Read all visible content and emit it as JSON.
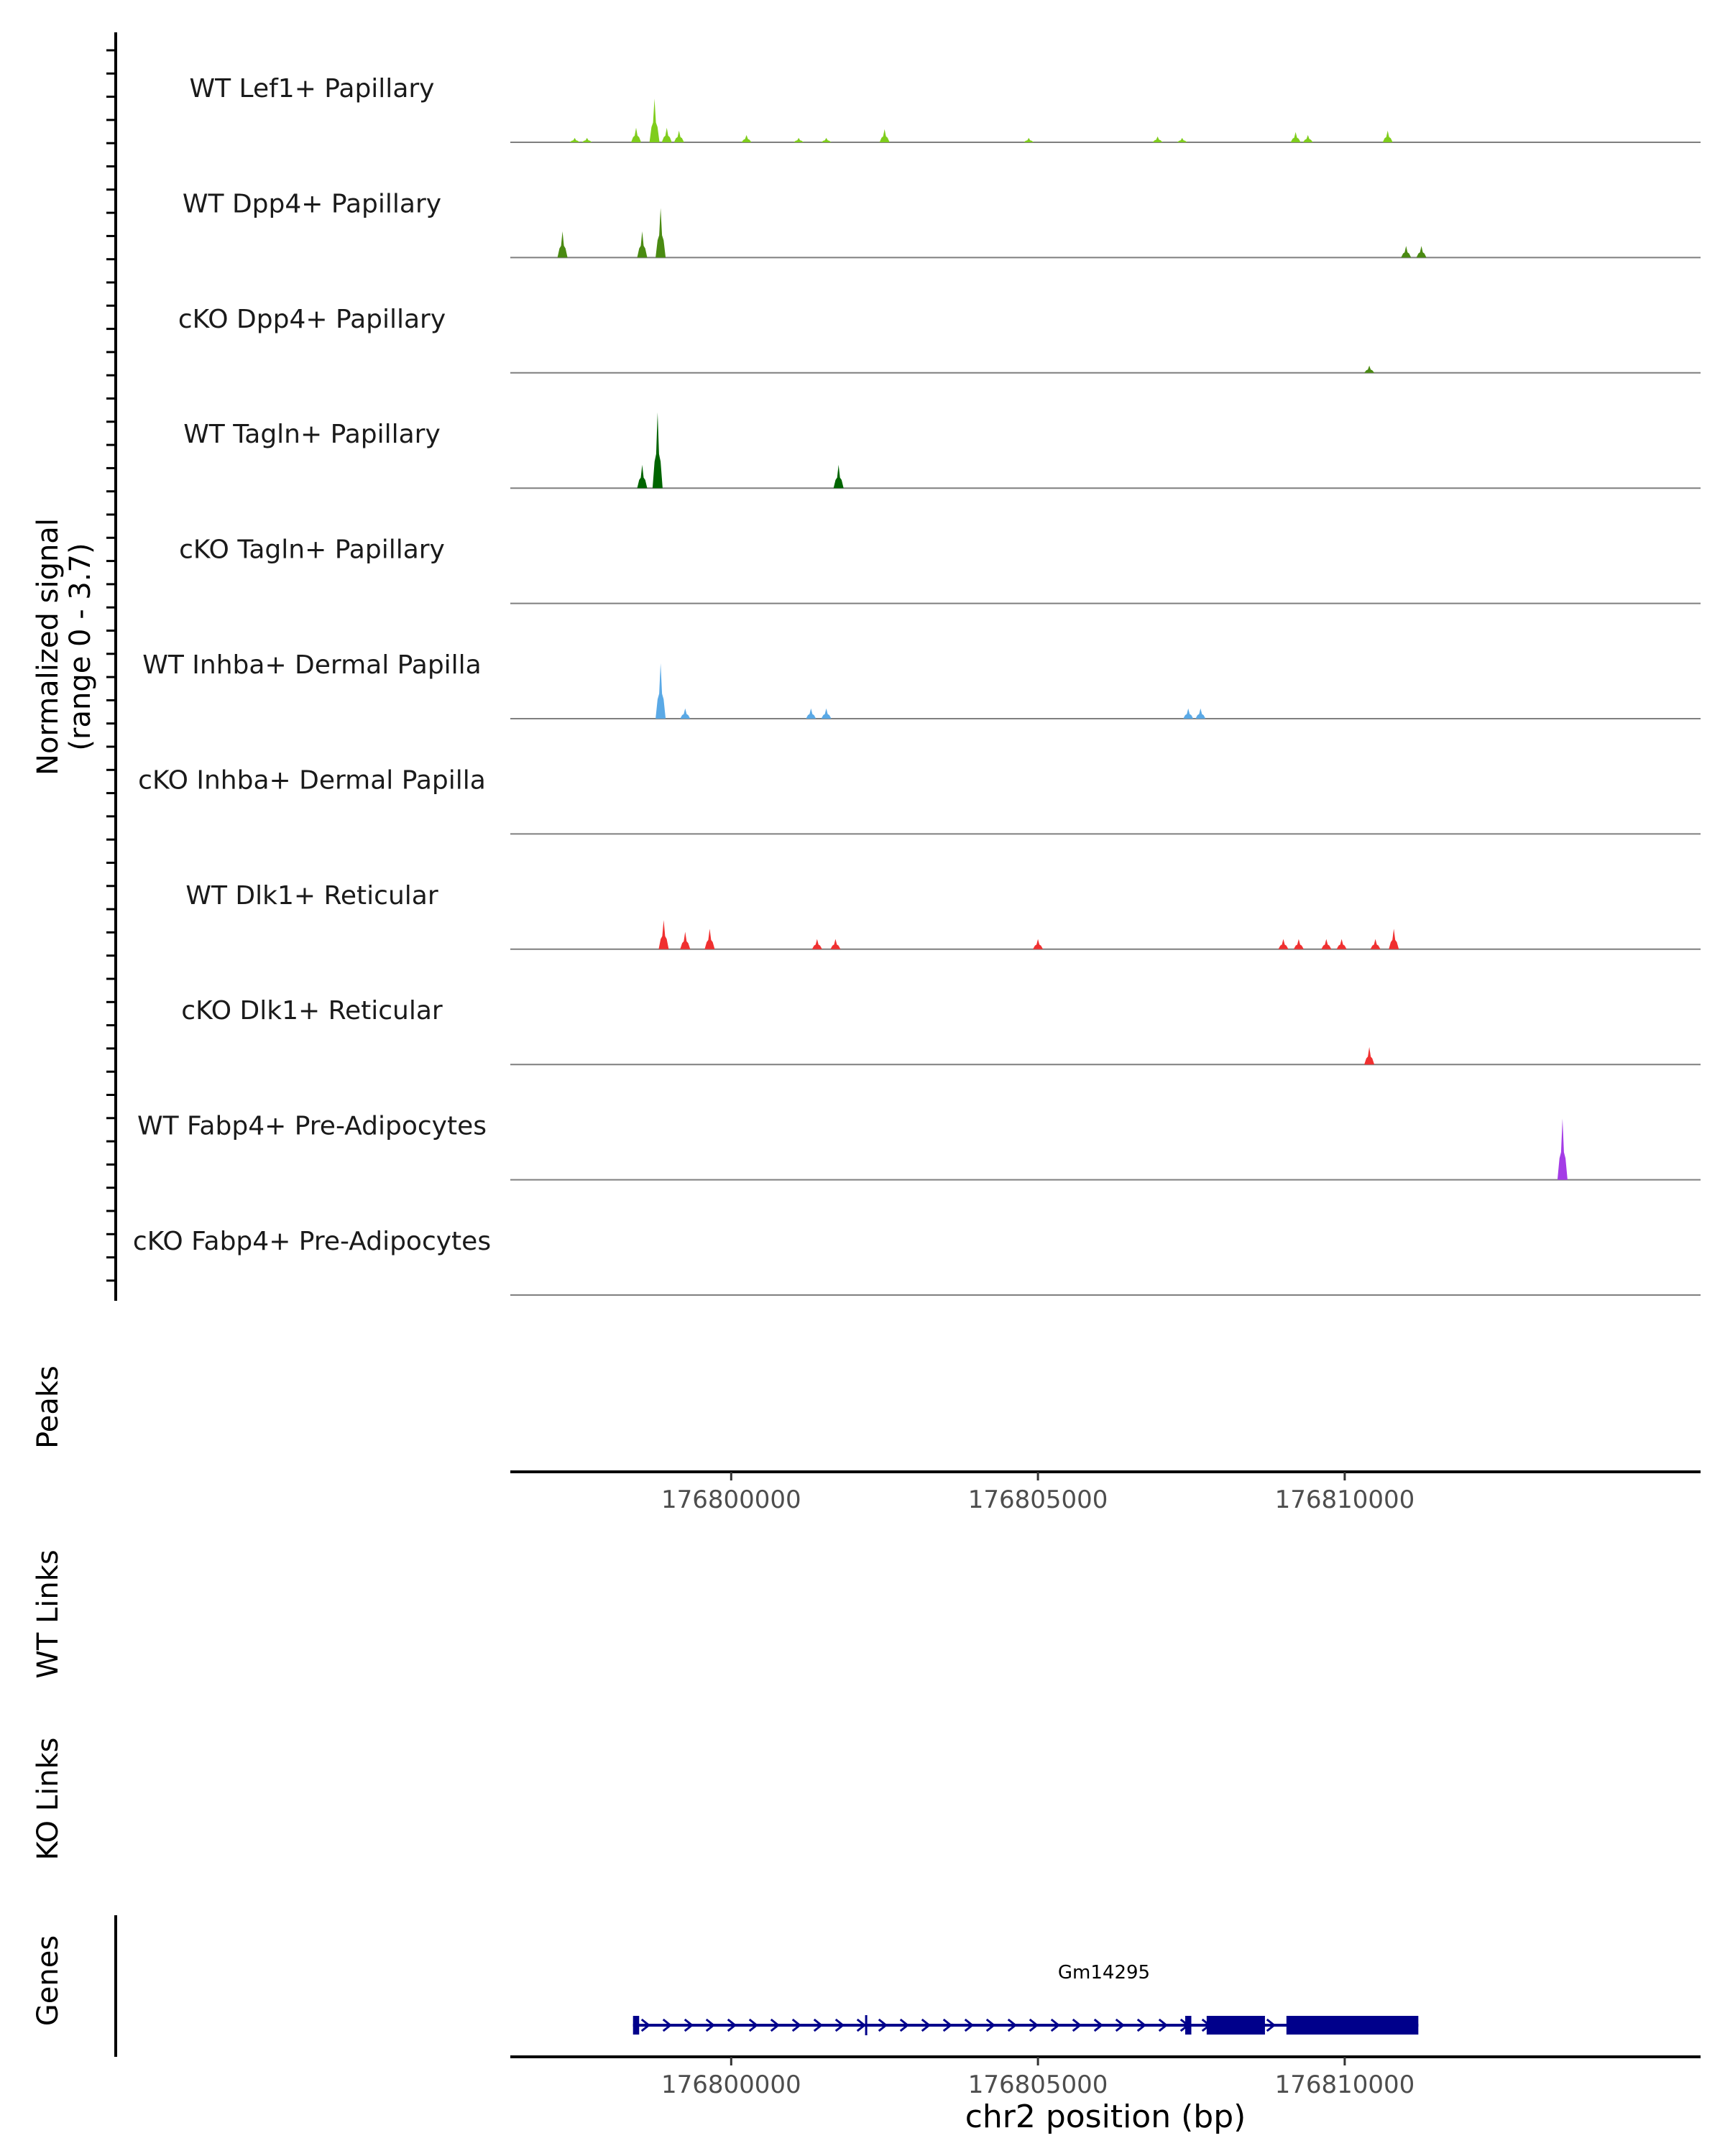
{
  "y_axis": {
    "label_line1": "Normalized signal",
    "label_line2": "(range 0 - 3.7)"
  },
  "panels": {
    "peaks": "Peaks",
    "wt_links": "WT Links",
    "ko_links": "KO Links",
    "genes": "Genes"
  },
  "x_axis": {
    "ticks": [
      {
        "value": 176800000,
        "label": "176800000"
      },
      {
        "value": 176805000,
        "label": "176805000"
      },
      {
        "value": 176810000,
        "label": "176810000"
      }
    ],
    "label": "chr2 position (bp)"
  },
  "gene": {
    "name": "Gm14295",
    "color": "#00008b"
  },
  "chart_data": {
    "type": "area",
    "title": "",
    "xlabel": "chr2 position (bp)",
    "ylabel": "Normalized signal (range 0 - 3.7)",
    "xlim": [
      176796400,
      176815800
    ],
    "ylim": [
      0,
      3.7
    ],
    "gene": {
      "name": "Gm14295",
      "start": 176798400,
      "end": 176811200,
      "strand": "+",
      "thick_blocks": [
        [
          176798400,
          176798500
        ],
        [
          176807400,
          176807500
        ],
        [
          176807750,
          176808700
        ],
        [
          176809050,
          176811200
        ]
      ],
      "intron_marks": [
        176802200
      ]
    },
    "tracks": [
      {
        "name": "WT Lef1+ Papillary",
        "color": "#7fcd1c",
        "peaks": [
          [
            176797450,
            0.15
          ],
          [
            176797650,
            0.15
          ],
          [
            176798450,
            0.5
          ],
          [
            176798750,
            1.5
          ],
          [
            176798950,
            0.5
          ],
          [
            176799150,
            0.4
          ],
          [
            176800250,
            0.25
          ],
          [
            176801100,
            0.15
          ],
          [
            176801550,
            0.15
          ],
          [
            176802500,
            0.45
          ],
          [
            176804850,
            0.15
          ],
          [
            176806950,
            0.2
          ],
          [
            176807350,
            0.15
          ],
          [
            176809200,
            0.35
          ],
          [
            176809400,
            0.25
          ],
          [
            176810700,
            0.4
          ]
        ]
      },
      {
        "name": "WT Dpp4+ Papillary",
        "color": "#4a8a12",
        "peaks": [
          [
            176797250,
            0.9
          ],
          [
            176798550,
            0.9
          ],
          [
            176798850,
            1.7
          ],
          [
            176811000,
            0.4
          ],
          [
            176811250,
            0.4
          ]
        ]
      },
      {
        "name": "cKO Dpp4+ Papillary",
        "color": "#4a8a12",
        "peaks": [
          [
            176810400,
            0.25
          ]
        ]
      },
      {
        "name": "WT Tagln+ Papillary",
        "color": "#006400",
        "peaks": [
          [
            176798550,
            0.8
          ],
          [
            176798800,
            2.6
          ],
          [
            176801750,
            0.8
          ]
        ]
      },
      {
        "name": "cKO Tagln+ Papillary",
        "color": "#006400",
        "peaks": []
      },
      {
        "name": "WT Inhba+ Dermal Papilla",
        "color": "#5aa9e6",
        "peaks": [
          [
            176798850,
            1.9
          ],
          [
            176799250,
            0.35
          ],
          [
            176801300,
            0.35
          ],
          [
            176801550,
            0.35
          ],
          [
            176807450,
            0.35
          ],
          [
            176807650,
            0.35
          ]
        ]
      },
      {
        "name": "cKO Inhba+ Dermal Papilla",
        "color": "#5aa9e6",
        "peaks": []
      },
      {
        "name": "WT Dlk1+ Reticular",
        "color": "#f03030",
        "peaks": [
          [
            176798900,
            1.0
          ],
          [
            176799250,
            0.6
          ],
          [
            176799650,
            0.7
          ],
          [
            176801400,
            0.35
          ],
          [
            176801700,
            0.35
          ],
          [
            176805000,
            0.35
          ],
          [
            176809000,
            0.35
          ],
          [
            176809250,
            0.35
          ],
          [
            176809700,
            0.35
          ],
          [
            176809950,
            0.35
          ],
          [
            176810500,
            0.35
          ],
          [
            176810800,
            0.7
          ]
        ]
      },
      {
        "name": "cKO Dlk1+ Reticular",
        "color": "#f03030",
        "peaks": [
          [
            176810400,
            0.6
          ]
        ]
      },
      {
        "name": "WT Fabp4+ Pre-Adipocytes",
        "color": "#a43ce6",
        "peaks": [
          [
            176813550,
            2.1
          ]
        ]
      },
      {
        "name": "cKO Fabp4+ Pre-Adipocytes",
        "color": "#a43ce6",
        "peaks": []
      }
    ]
  }
}
